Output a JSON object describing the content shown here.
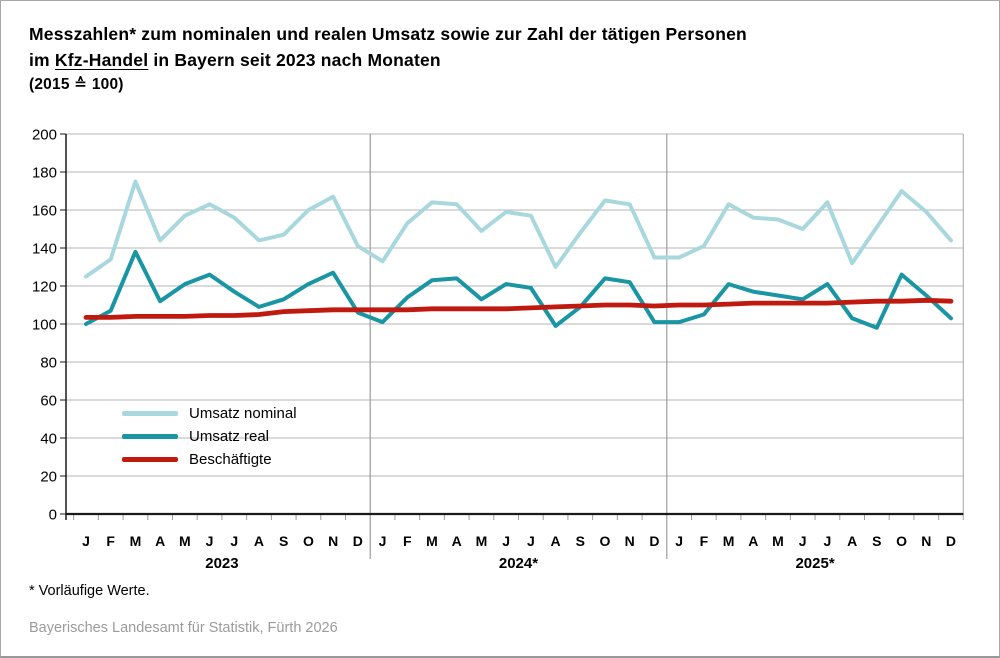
{
  "title": {
    "line1": "Messzahlen* zum nominalen und realen Umsatz sowie zur Zahl der tätigen Personen",
    "line2_prefix": "im ",
    "line2_underlined": "Kfz-Handel",
    "line2_suffix": " in Bayern seit 2023 nach Monaten",
    "line3": "(2015 ≙ 100)"
  },
  "footnote": "* Vorläufige Werte.",
  "source": "Bayerisches Landesamt für Statistik, Fürth 2026",
  "colors": {
    "grid": "#b4b4b4",
    "axis": "#1a1a1a",
    "year_divider": "#9c9c9c",
    "tick": "#9c9c9c",
    "plot_right_border": "#b4b4b4",
    "source_text": "#9b9b9b"
  },
  "chart_data": {
    "type": "line",
    "title": "Messzahlen* zum nominalen und realen Umsatz sowie zur Zahl der tätigen Personen im Kfz-Handel in Bayern seit 2023 nach Monaten (2015 ≙ 100)",
    "xlabel": "",
    "ylabel": "",
    "ylim": [
      0,
      200
    ],
    "y_ticks": [
      0,
      20,
      40,
      60,
      80,
      100,
      120,
      140,
      160,
      180,
      200
    ],
    "grid": true,
    "legend_position": "inside-left",
    "categories": [
      "J",
      "F",
      "M",
      "A",
      "M",
      "J",
      "J",
      "A",
      "S",
      "O",
      "N",
      "D",
      "J",
      "F",
      "M",
      "A",
      "M",
      "J",
      "J",
      "A",
      "S",
      "O",
      "N",
      "D",
      "J",
      "F",
      "M",
      "A",
      "M",
      "J",
      "J",
      "A",
      "S",
      "O",
      "N",
      "D"
    ],
    "years": [
      {
        "label": "2023"
      },
      {
        "label": "2024*"
      },
      {
        "label": "2025*"
      }
    ],
    "series": [
      {
        "name": "Umsatz nominal",
        "color": "#a8d8de",
        "values": [
          125,
          134,
          175,
          144,
          157,
          163,
          156,
          144,
          147,
          160,
          167,
          141,
          133,
          153,
          164,
          163,
          149,
          159,
          157,
          130,
          148,
          165,
          163,
          135,
          135,
          141,
          163,
          156,
          155,
          150,
          164,
          132,
          151,
          170,
          159,
          144
        ]
      },
      {
        "name": "Umsatz real",
        "color": "#1995a3",
        "values": [
          100,
          107,
          138,
          112,
          121,
          126,
          117,
          109,
          113,
          121,
          127,
          106,
          101,
          114,
          123,
          124,
          113,
          121,
          119,
          99,
          109,
          124,
          122,
          101,
          101,
          105,
          121,
          117,
          115,
          113,
          121,
          103,
          98,
          126,
          115,
          103
        ]
      },
      {
        "name": "Beschäftigte",
        "color": "#c01a10",
        "values": [
          103.5,
          103.5,
          104,
          104,
          104,
          104.5,
          104.5,
          105,
          106.5,
          107,
          107.5,
          107.5,
          107.5,
          107.5,
          108,
          108,
          108,
          108,
          108.5,
          109,
          109.5,
          110,
          110,
          109.5,
          110,
          110,
          110.5,
          111,
          111,
          111,
          111,
          111.5,
          112,
          112,
          112.5,
          112
        ]
      }
    ]
  }
}
